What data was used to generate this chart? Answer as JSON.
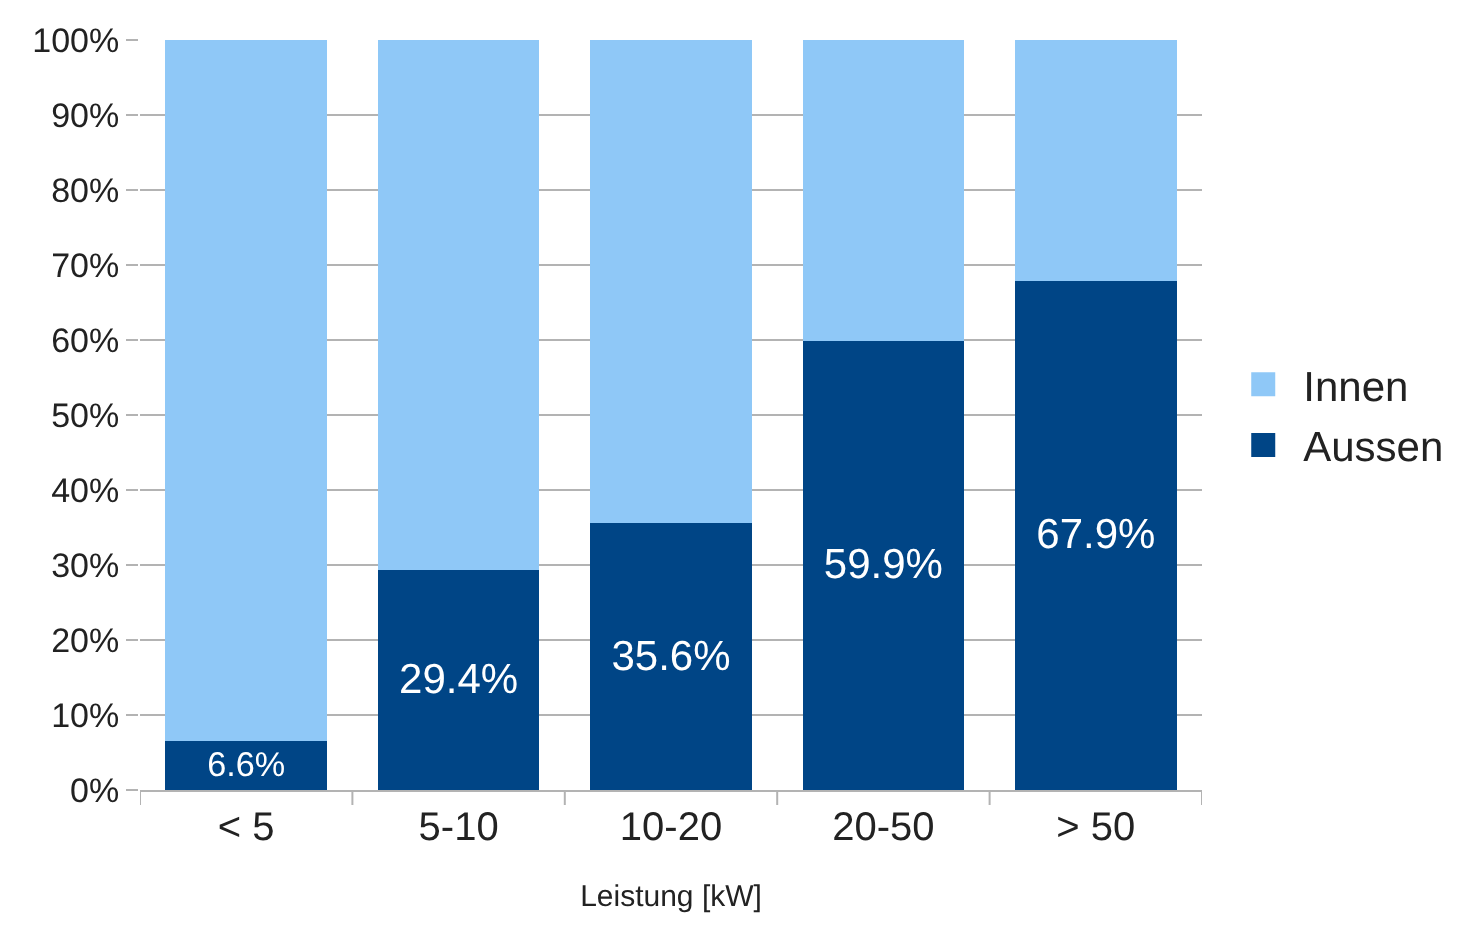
{
  "chart_data": {
    "type": "bar",
    "stacked": true,
    "xlabel": "Leistung [kW]",
    "categories": [
      "< 5",
      "5-10",
      "10-20",
      "20-50",
      "> 50"
    ],
    "series": [
      {
        "name": "Aussen",
        "color": "#004586",
        "values": [
          6.6,
          29.4,
          35.6,
          59.9,
          67.9
        ],
        "value_labels": [
          "6.6%",
          "29.4%",
          "35.6%",
          "59.9%",
          "67.9%"
        ]
      },
      {
        "name": "Innen",
        "color": "#8fc8f7",
        "values": [
          93.4,
          70.6,
          64.4,
          40.1,
          32.1
        ]
      }
    ],
    "ylim": [
      0,
      100
    ],
    "yticks": [
      {
        "value": 0,
        "label": "0%"
      },
      {
        "value": 10,
        "label": "10%"
      },
      {
        "value": 20,
        "label": "20%"
      },
      {
        "value": 30,
        "label": "30%"
      },
      {
        "value": 40,
        "label": "40%"
      },
      {
        "value": 50,
        "label": "50%"
      },
      {
        "value": 60,
        "label": "60%"
      },
      {
        "value": 70,
        "label": "70%"
      },
      {
        "value": 80,
        "label": "80%"
      },
      {
        "value": 90,
        "label": "90%"
      },
      {
        "value": 100,
        "label": "100%"
      }
    ],
    "grid": "y",
    "legend": "right"
  }
}
